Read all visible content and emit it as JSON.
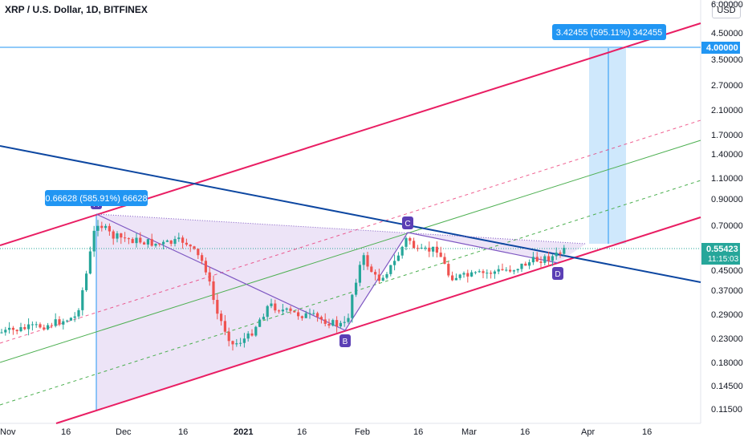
{
  "header": {
    "title": "XRP / U.S. Dollar, 1D, BITFINEX",
    "currency_button": "USD"
  },
  "colors": {
    "channel": "#e91e63",
    "trendline": "#0d47a1",
    "mid_line": "#4caf50",
    "pattern_fill": "#d7c4ee",
    "pattern_line": "#7e57c2",
    "label_bg": "#5b3fb5",
    "measure_fill": "#bbdefb",
    "measure_line": "#2196f3",
    "tag_bg": "#2196f3",
    "price_tag": "#26a69a",
    "up": "#26a69a",
    "down": "#ef5350"
  },
  "chart_data": {
    "type": "candlestick",
    "title": "XRP / U.S. Dollar, 1D, BITFINEX",
    "y_scale": "log",
    "y_tick_labels": [
      "6.00000",
      "4.50000",
      "3.50000",
      "2.70000",
      "2.10000",
      "1.70000",
      "1.40000",
      "1.10000",
      "0.90000",
      "0.70000",
      "0.45000",
      "0.37000",
      "0.29000",
      "0.23000",
      "0.18000",
      "0.14500",
      "0.11500"
    ],
    "x_tick_labels": [
      "Nov",
      "16",
      "Dec",
      "16",
      "2021",
      "16",
      "Feb",
      "16",
      "Mar",
      "16",
      "Apr",
      "16"
    ],
    "price_marker": {
      "value": "4.00000"
    },
    "current_price": {
      "value": "0.55423",
      "countdown": "11:15:03"
    },
    "measure_labels": [
      "0.66628 (585.91%) 66628",
      "3.42455 (595.11%) 342455"
    ],
    "pattern_points": [
      {
        "label": "A",
        "date": "2020-11-24",
        "price": 0.78
      },
      {
        "label": "B",
        "date": "2021-01-31",
        "price": 0.245
      },
      {
        "label": "C",
        "date": "2021-02-13",
        "price": 0.63
      },
      {
        "label": "D",
        "date": "2021-03-23",
        "price": 0.48
      }
    ],
    "point_labels": [
      "A",
      "B",
      "C",
      "D"
    ],
    "candles_description": "Daily OHLC from late Oct 2020 to late Mar 2021; rally to ~0.78 in late Nov, decline to ~0.22 in late Dec, spike to ~0.75 Feb 1, consolidation 0.42–0.60 through March."
  }
}
